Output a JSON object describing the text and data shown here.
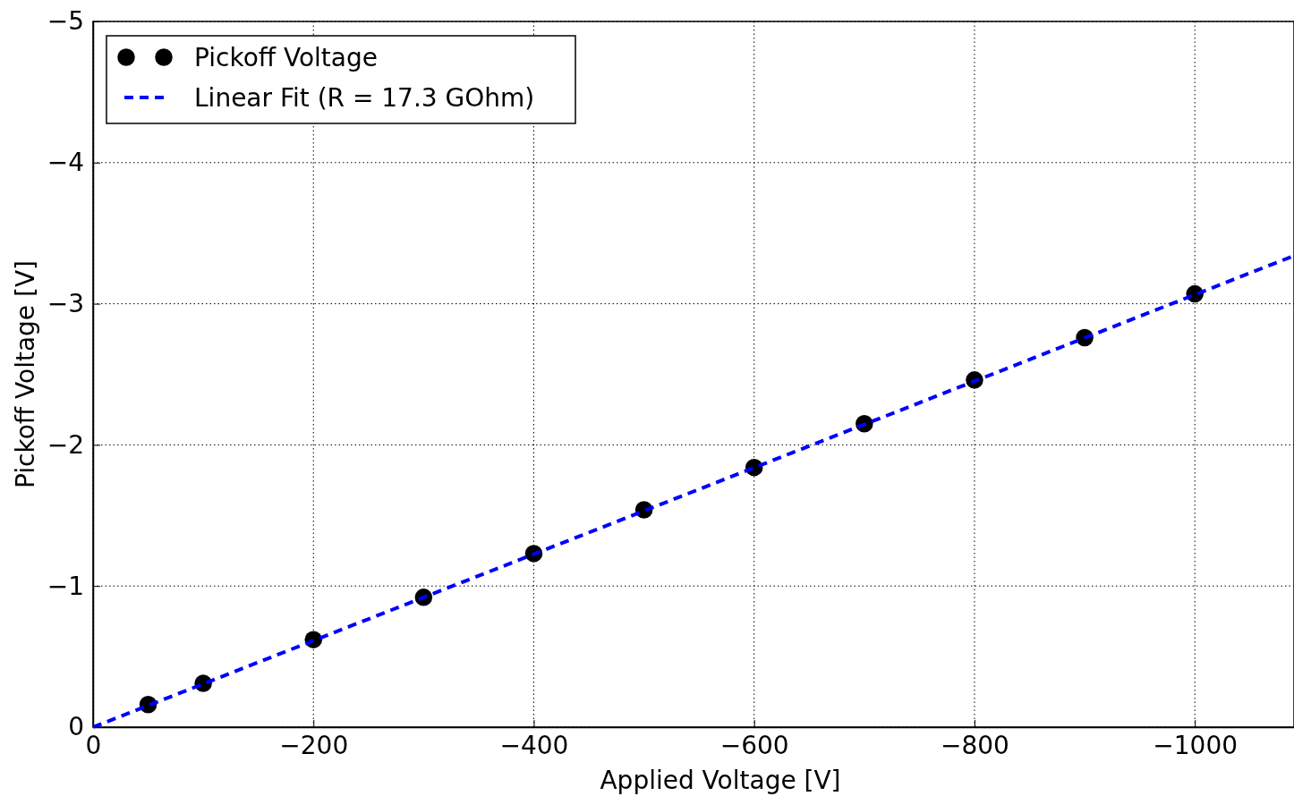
{
  "chart_data": {
    "type": "scatter",
    "xlabel": "Applied Voltage [V]",
    "ylabel": "Pickoff Voltage [V]",
    "xlim": [
      0,
      -1090
    ],
    "ylim": [
      0,
      -5
    ],
    "xticks": [
      0,
      {
        "value": -200,
        "label": "−200"
      },
      {
        "value": -400,
        "label": "−400"
      },
      {
        "value": -600,
        "label": "−600"
      },
      {
        "value": -800,
        "label": "−800"
      },
      {
        "value": -1000,
        "label": "−1000"
      }
    ],
    "yticks": [
      0,
      {
        "value": -1,
        "label": "−1"
      },
      {
        "value": -2,
        "label": "−2"
      },
      {
        "value": -3,
        "label": "−3"
      },
      {
        "value": -4,
        "label": "−4"
      },
      {
        "value": -5,
        "label": "−5"
      }
    ],
    "grid": true,
    "legend": "top left",
    "series": [
      {
        "name": "Pickoff Voltage",
        "marker": "circle",
        "color": "#000000",
        "x": [
          -50,
          -100,
          -200,
          -300,
          -400,
          -500,
          -600,
          -700,
          -800,
          -900,
          -1000
        ],
        "values": [
          -0.16,
          -0.31,
          -0.62,
          -0.92,
          -1.23,
          -1.54,
          -1.84,
          -2.15,
          -2.46,
          -2.76,
          -3.07
        ]
      },
      {
        "name": "Linear Fit (R = 17.3 GOhm)",
        "type": "line",
        "line_style": "dashed",
        "marker": "none",
        "color": "#0000ff",
        "x": [
          0,
          -1090
        ],
        "values": [
          0,
          -3.34
        ]
      }
    ]
  }
}
